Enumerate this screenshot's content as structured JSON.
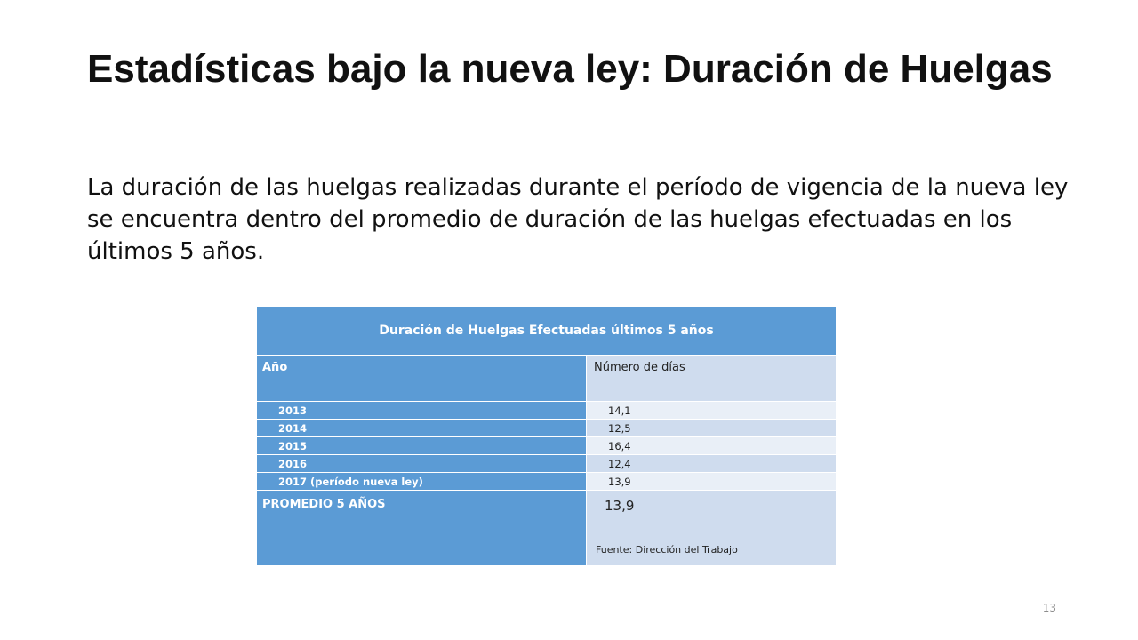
{
  "slide": {
    "title": "Estadísticas bajo la nueva ley: Duración de Huelgas",
    "body": "La duración de las huelgas realizadas durante el período de vigencia de la nueva ley se encuentra dentro del promedio de duración de las huelgas efectuadas en los últimos 5 años.",
    "page_number": "13"
  },
  "table": {
    "title": "Duración de Huelgas Efectuadas últimos 5 años",
    "col_year": "Año",
    "col_days": "Número de días",
    "rows": [
      {
        "year": "2013",
        "days": "14,1"
      },
      {
        "year": "2014",
        "days": "12,5"
      },
      {
        "year": "2015",
        "days": "16,4"
      },
      {
        "year": "2016",
        "days": "12,4"
      },
      {
        "year": "2017 (período nueva ley)",
        "days": "13,9"
      }
    ],
    "average_label": "PROMEDIO 5 AÑOS",
    "average_value": "13,9",
    "source": "Fuente: Dirección del Trabajo"
  },
  "colors": {
    "header_blue": "#5b9bd5",
    "light_band": "#cfdcee",
    "lighter_band": "#e9eff7"
  }
}
